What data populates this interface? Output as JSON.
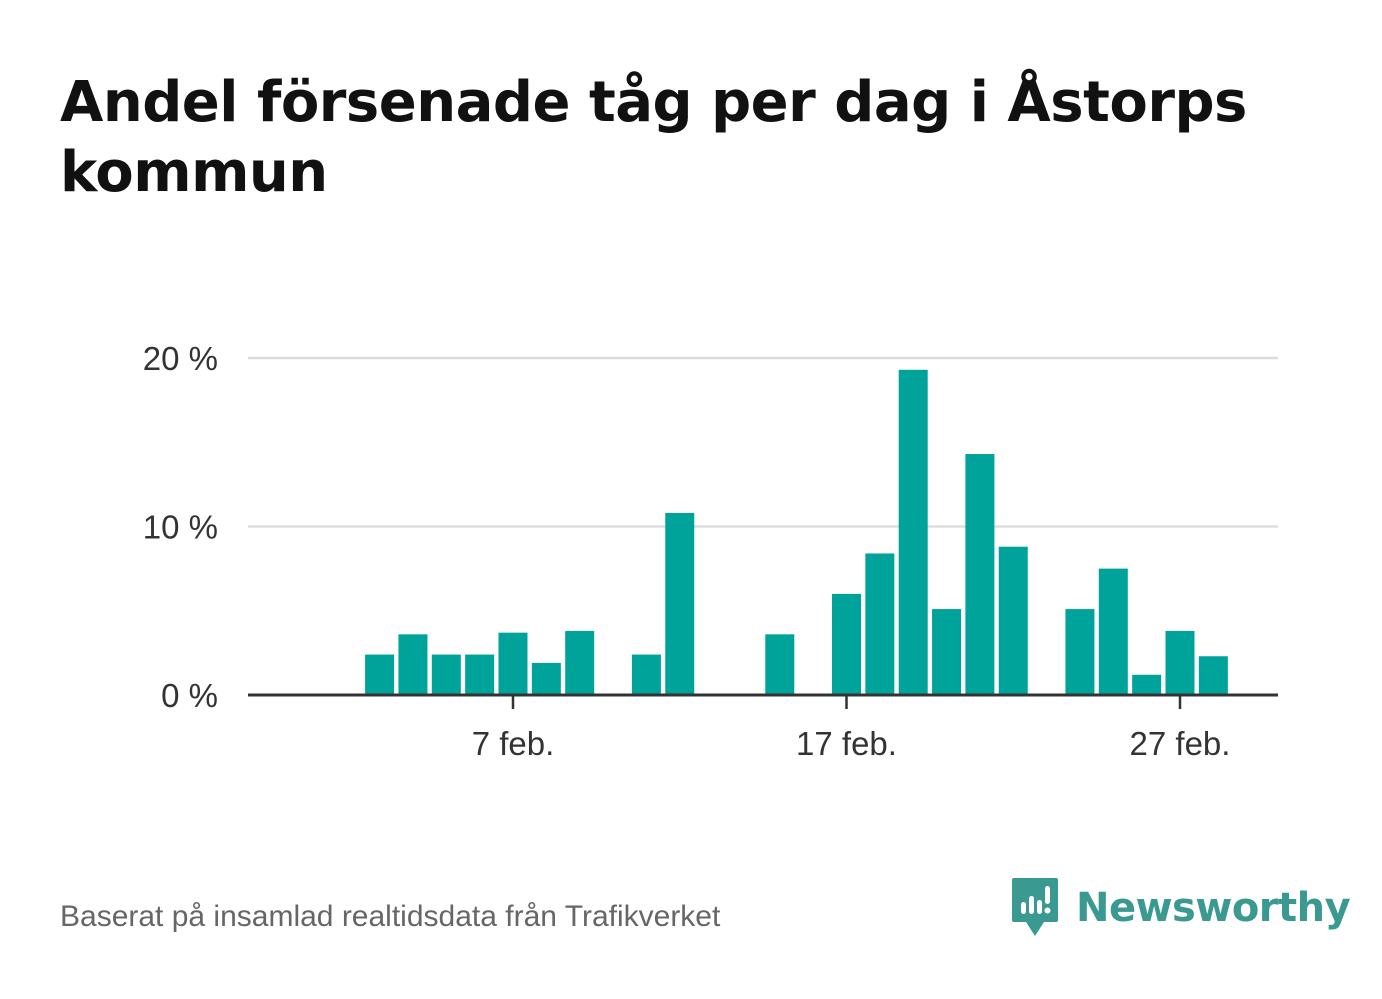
{
  "title": "Andel försenade tåg per dag i Åstorps kommun",
  "source": "Baserat på insamlad realtidsdata från Trafikverket",
  "brand": {
    "name": "Newsworthy",
    "icon": "newsworthy-logo-icon",
    "color": "#3a9a92"
  },
  "colors": {
    "bar": "#00a39a",
    "grid": "#dddddd",
    "axis": "#333333"
  },
  "chart_data": {
    "type": "bar",
    "title": "Andel försenade tåg per dag i Åstorps kommun",
    "xlabel": "",
    "ylabel": "",
    "x_unit": "day of February",
    "x_range": [
      0,
      29
    ],
    "xticks": [
      {
        "x": 7,
        "label": "7 feb."
      },
      {
        "x": 17,
        "label": "17 feb."
      },
      {
        "x": 27,
        "label": "27 feb."
      }
    ],
    "ylim": [
      0,
      20
    ],
    "yticks": [
      {
        "value": 0,
        "label": "0 %"
      },
      {
        "value": 10,
        "label": "10 %"
      },
      {
        "value": 20,
        "label": "20 %"
      }
    ],
    "grid": true,
    "legend": "none",
    "series": [
      {
        "values": [
          {
            "x": 3,
            "y": 2.4
          },
          {
            "x": 4,
            "y": 3.6
          },
          {
            "x": 5,
            "y": 2.4
          },
          {
            "x": 6,
            "y": 2.4
          },
          {
            "x": 7,
            "y": 3.7
          },
          {
            "x": 8,
            "y": 1.9
          },
          {
            "x": 9,
            "y": 3.8
          },
          {
            "x": 11,
            "y": 2.4
          },
          {
            "x": 12,
            "y": 10.8
          },
          {
            "x": 15,
            "y": 3.6
          },
          {
            "x": 17,
            "y": 6.0
          },
          {
            "x": 18,
            "y": 8.4
          },
          {
            "x": 19,
            "y": 19.3
          },
          {
            "x": 20,
            "y": 5.1
          },
          {
            "x": 21,
            "y": 14.3
          },
          {
            "x": 22,
            "y": 8.8
          },
          {
            "x": 24,
            "y": 5.1
          },
          {
            "x": 25,
            "y": 7.5
          },
          {
            "x": 26,
            "y": 1.2
          },
          {
            "x": 27,
            "y": 3.8
          },
          {
            "x": 28,
            "y": 2.3
          }
        ]
      }
    ]
  }
}
